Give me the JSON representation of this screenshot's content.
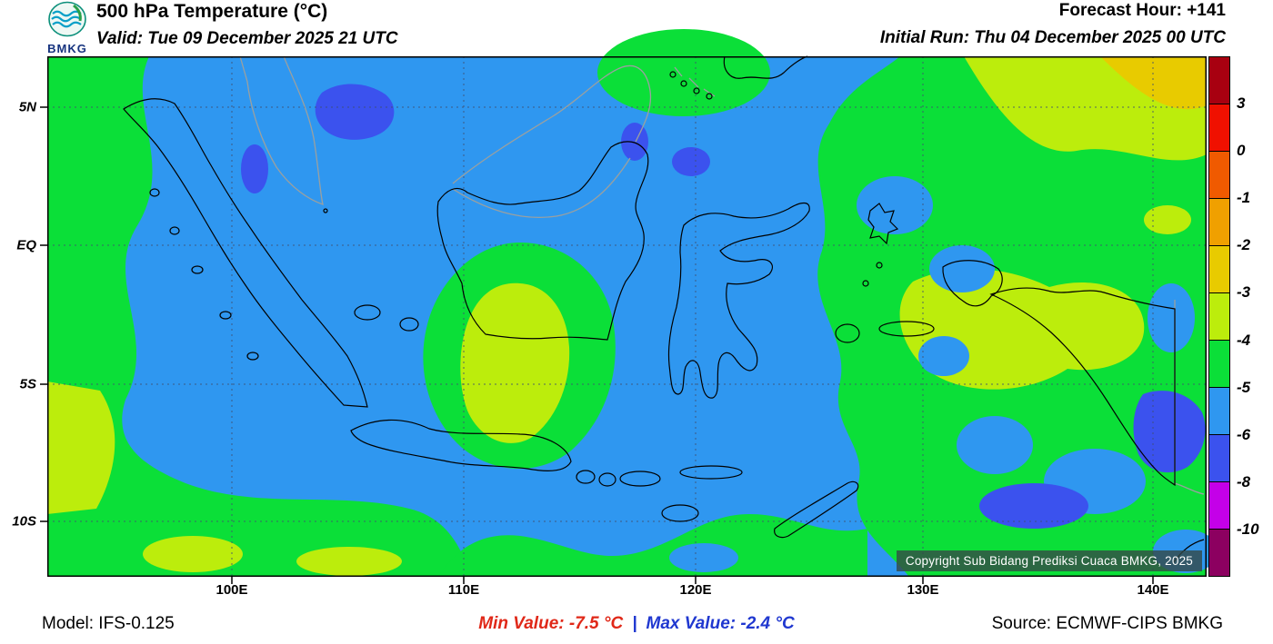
{
  "header": {
    "logo_text": "BMKG",
    "title": "500 hPa Temperature (°C)",
    "valid_label": "Valid: Tue 09 December 2025 21 UTC",
    "forecast_hour": "Forecast Hour: +141",
    "initial_run": "Initial Run: Thu 04 December 2025 00 UTC"
  },
  "map": {
    "lat_labels": [
      "5N",
      "EQ",
      "5S",
      "10S"
    ],
    "lon_labels": [
      "100E",
      "110E",
      "120E",
      "130E",
      "140E"
    ],
    "copyright": "Copyright Sub Bidang Prediksi Cuaca BMKG, 2025",
    "field_colors": {
      "blue": "#2f97f0",
      "royal_blue": "#3b52ee",
      "green": "#0bdf38",
      "yellow_green": "#bced0c",
      "yellow": "#e8cb00"
    }
  },
  "colorbar": {
    "tick_labels": [
      "3",
      "0",
      "-1",
      "-2",
      "-3",
      "-4",
      "-5",
      "-6",
      "-8",
      "-10"
    ],
    "colors": [
      "#a80010",
      "#f01000",
      "#f05a00",
      "#f0a000",
      "#e8cb00",
      "#bced0c",
      "#0bdf38",
      "#2f97f0",
      "#3b52ee",
      "#c400e8",
      "#8c0060"
    ]
  },
  "footer": {
    "model": "Model: IFS-0.125",
    "min_value": "Min Value: -7.5 °C",
    "separator": "|",
    "max_value": "Max Value: -2.4 °C",
    "source": "Source: ECMWF-CIPS BMKG"
  }
}
